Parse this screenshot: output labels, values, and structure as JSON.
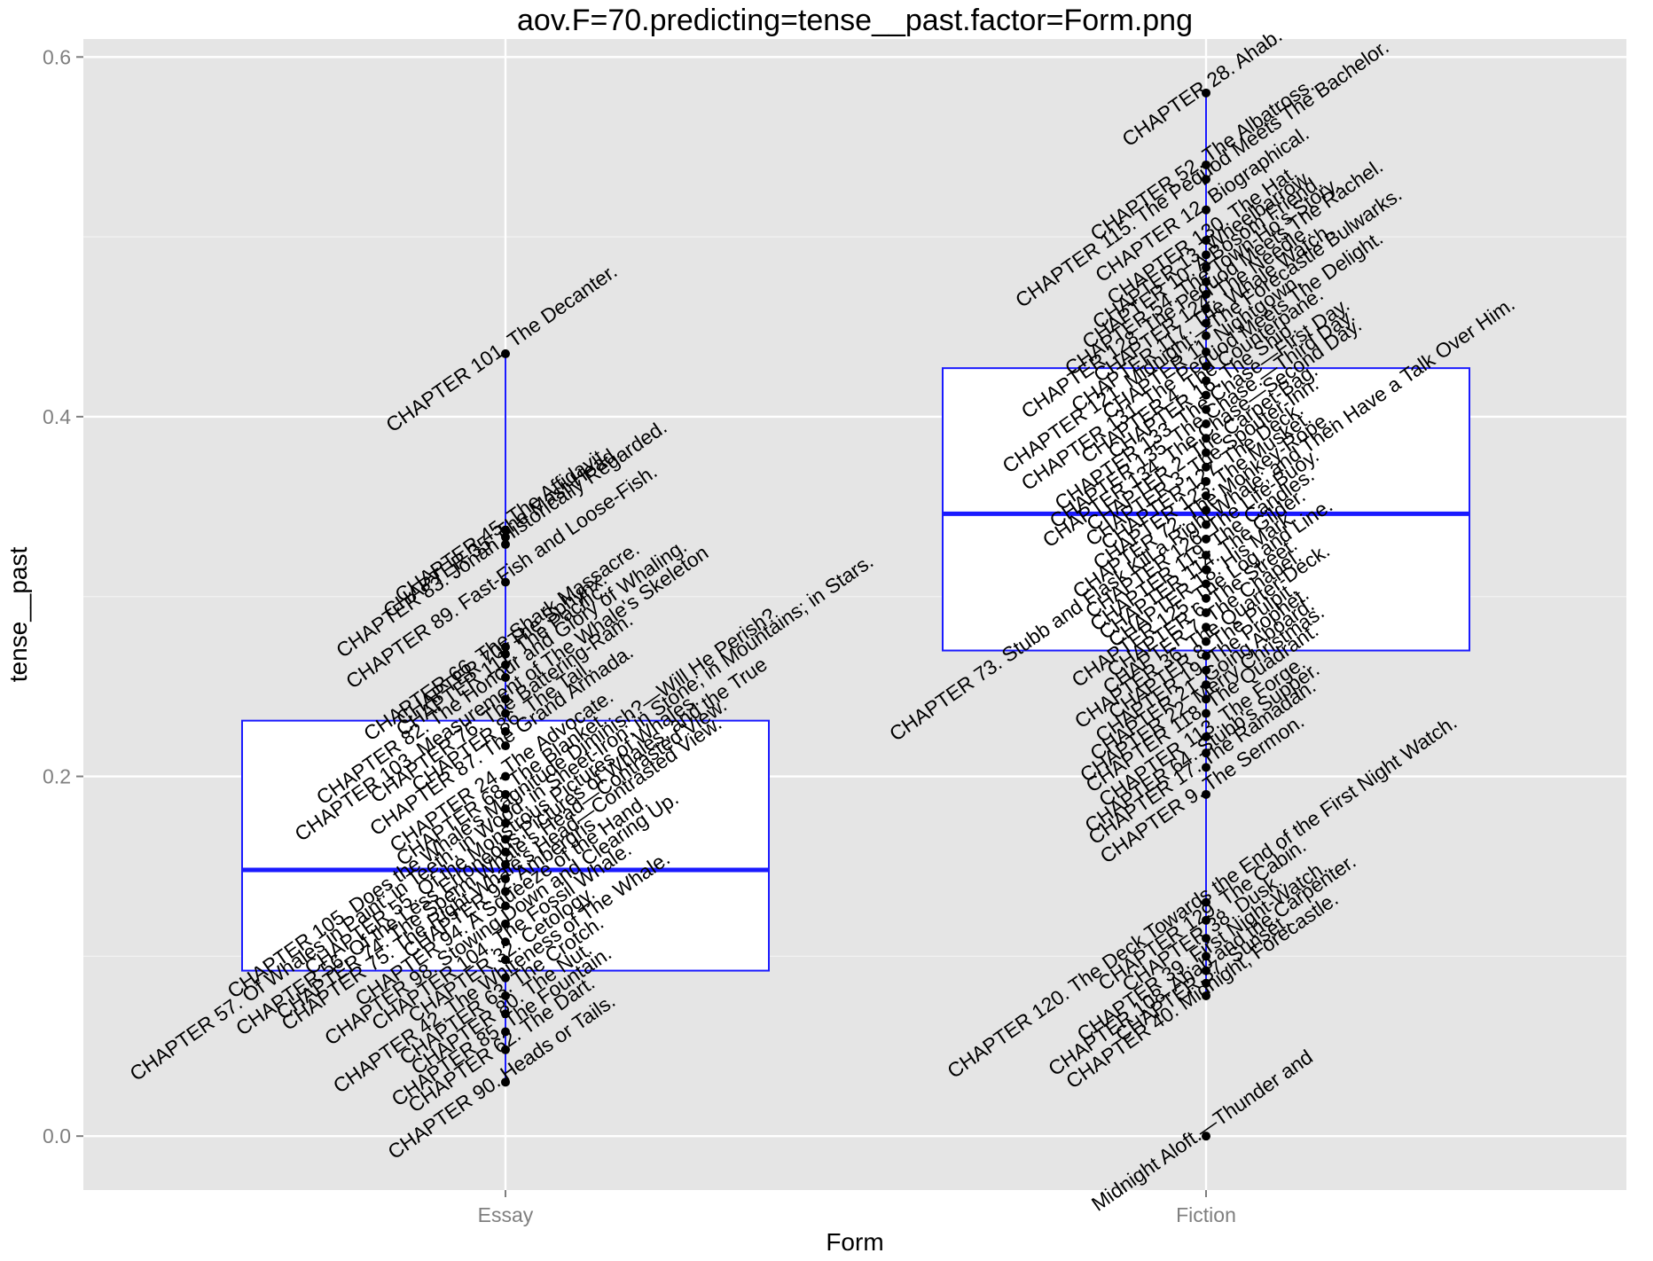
{
  "chart_data": {
    "type": "box",
    "title": "aov.F=70.predicting=tense__past.factor=Form.png",
    "xlabel": "Form",
    "ylabel": "tense__past",
    "categories": [
      "Essay",
      "Fiction"
    ],
    "ylim": [
      -0.03,
      0.61
    ],
    "yticks": [
      0.0,
      0.2,
      0.4,
      0.6
    ],
    "yticklabels": [
      "0.0",
      "0.2",
      "0.4",
      "0.6"
    ],
    "grid": true,
    "box_color": "#1a1aff",
    "panel_background": "#e5e5e5",
    "boxes": [
      {
        "category": "Essay",
        "whisker_low": 0.03,
        "q1": 0.092,
        "median": 0.148,
        "q3": 0.231,
        "whisker_high": 0.435
      },
      {
        "category": "Fiction",
        "whisker_low": 0.078,
        "q1": 0.27,
        "median": 0.346,
        "q3": 0.427,
        "whisker_high": 0.58
      }
    ],
    "points": [
      {
        "category": "Essay",
        "y": 0.435,
        "label": "CHAPTER 101. The Decanter."
      },
      {
        "category": "Essay",
        "y": 0.337,
        "label": "CHAPTER 45. The Affidavit."
      },
      {
        "category": "Essay",
        "y": 0.333,
        "label": "CHAPTER 35. The Mast-Head."
      },
      {
        "category": "Essay",
        "y": 0.329,
        "label": "CHAPTER 83. Jonah Historically Regarded."
      },
      {
        "category": "Essay",
        "y": 0.308,
        "label": "CHAPTER 89. Fast-Fish and Loose-Fish."
      },
      {
        "category": "Essay",
        "y": 0.272,
        "label": "CHAPTER 66. The Shark Massacre."
      },
      {
        "category": "Essay",
        "y": 0.268,
        "label": "CHAPTER 70. The Sphynx."
      },
      {
        "category": "Essay",
        "y": 0.262,
        "label": "CHAPTER 111. The Pacific."
      },
      {
        "category": "Essay",
        "y": 0.255,
        "label": "CHAPTER 82. The Honour and Glory of Whaling."
      },
      {
        "category": "Essay",
        "y": 0.243,
        "label": "CHAPTER 103. Measurement of The Whale's Skeleton"
      },
      {
        "category": "Essay",
        "y": 0.235,
        "label": "CHAPTER 76. The Battering-Ram."
      },
      {
        "category": "Essay",
        "y": 0.225,
        "label": "CHAPTER 86. The Tail."
      },
      {
        "category": "Essay",
        "y": 0.217,
        "label": "CHAPTER 87. The Grand Armada."
      },
      {
        "category": "Essay",
        "y": 0.2,
        "label": "CHAPTER 24. The Advocate."
      },
      {
        "category": "Essay",
        "y": 0.19,
        "label": "CHAPTER 68. The Blanket."
      },
      {
        "category": "Essay",
        "y": 0.182,
        "label": "CHAPTER 105. Does the Whale's Magnitude Diminish?—Will He Perish?"
      },
      {
        "category": "Essay",
        "y": 0.174,
        "label": "CHAPTER 57. Of Whales in Paint; in Teeth; in Wood; in Sheet-Iron; in Stone; in Mountains; in Stars."
      },
      {
        "category": "Essay",
        "y": 0.165,
        "label": "CHAPTER 55. Of the Monstrous Pictures of Whales."
      },
      {
        "category": "Essay",
        "y": 0.158,
        "label": "CHAPTER 56. Of the Less Erroneous Pictures of Whales, and the True"
      },
      {
        "category": "Essay",
        "y": 0.151,
        "label": "CHAPTER 74. The Sperm Whale's Head—Contrasted View."
      },
      {
        "category": "Essay",
        "y": 0.143,
        "label": "CHAPTER 75. The Right Whale's Head—Contrasted View."
      },
      {
        "category": "Essay",
        "y": 0.136,
        "label": "CHAPTER 92. Ambergris."
      },
      {
        "category": "Essay",
        "y": 0.128,
        "label": "CHAPTER 94. A Squeeze of the Hand."
      },
      {
        "category": "Essay",
        "y": 0.118,
        "label": "CHAPTER 98. Stowing Down and Clearing Up."
      },
      {
        "category": "Essay",
        "y": 0.108,
        "label": "CHAPTER 104. The Fossil Whale."
      },
      {
        "category": "Essay",
        "y": 0.098,
        "label": "CHAPTER 32. Cetology."
      },
      {
        "category": "Essay",
        "y": 0.088,
        "label": "CHAPTER 42. The Whiteness of The Whale."
      },
      {
        "category": "Essay",
        "y": 0.078,
        "label": "CHAPTER 63. The Crotch."
      },
      {
        "category": "Essay",
        "y": 0.068,
        "label": "CHAPTER 80. The Nut."
      },
      {
        "category": "Essay",
        "y": 0.058,
        "label": "CHAPTER 85. The Fountain."
      },
      {
        "category": "Essay",
        "y": 0.048,
        "label": "CHAPTER 62. The Dart."
      },
      {
        "category": "Essay",
        "y": 0.03,
        "label": "CHAPTER 90. Heads or Tails."
      },
      {
        "category": "Fiction",
        "y": 0.58,
        "label": "CHAPTER 28. Ahab."
      },
      {
        "category": "Fiction",
        "y": 0.54,
        "label": "CHAPTER 52. The Albatross."
      },
      {
        "category": "Fiction",
        "y": 0.532,
        "label": "CHAPTER 115. The Pequod Meets The Bachelor."
      },
      {
        "category": "Fiction",
        "y": 0.515,
        "label": "CHAPTER 12. Biographical."
      },
      {
        "category": "Fiction",
        "y": 0.498,
        "label": "CHAPTER 130. The Hat."
      },
      {
        "category": "Fiction",
        "y": 0.49,
        "label": "CHAPTER 13. Wheelbarrow."
      },
      {
        "category": "Fiction",
        "y": 0.483,
        "label": "CHAPTER 10. A Bosom Friend."
      },
      {
        "category": "Fiction",
        "y": 0.475,
        "label": "CHAPTER 54. The Town-Ho's Story."
      },
      {
        "category": "Fiction",
        "y": 0.468,
        "label": "CHAPTER 128. The Pequod Meets The Rachel."
      },
      {
        "category": "Fiction",
        "y": 0.46,
        "label": "CHAPTER 124. The Needle."
      },
      {
        "category": "Fiction",
        "y": 0.452,
        "label": "CHAPTER 117. The Whale Watch."
      },
      {
        "category": "Fiction",
        "y": 0.445,
        "label": "CHAPTER 121. Midnight.—The Forecastle Bulwarks."
      },
      {
        "category": "Fiction",
        "y": 0.436,
        "label": "CHAPTER 11. Nightgown."
      },
      {
        "category": "Fiction",
        "y": 0.428,
        "label": "CHAPTER 131. The Pequod Meets The Delight."
      },
      {
        "category": "Fiction",
        "y": 0.42,
        "label": "CHAPTER 4. The Counterpane."
      },
      {
        "category": "Fiction",
        "y": 0.412,
        "label": "CHAPTER 16. The Ship."
      },
      {
        "category": "Fiction",
        "y": 0.404,
        "label": "CHAPTER 133. The Chase—First Day."
      },
      {
        "category": "Fiction",
        "y": 0.396,
        "label": "CHAPTER 135. The Chase.—Third Day."
      },
      {
        "category": "Fiction",
        "y": 0.388,
        "label": "CHAPTER 134. The Chase—Second Day."
      },
      {
        "category": "Fiction",
        "y": 0.38,
        "label": "CHAPTER 2. The Carpet-Bag."
      },
      {
        "category": "Fiction",
        "y": 0.372,
        "label": "CHAPTER 3. The Spouter-Inn."
      },
      {
        "category": "Fiction",
        "y": 0.364,
        "label": "CHAPTER 127. The Deck."
      },
      {
        "category": "Fiction",
        "y": 0.356,
        "label": "CHAPTER 123. The Musket."
      },
      {
        "category": "Fiction",
        "y": 0.348,
        "label": "CHAPTER 72. The Monkey-Rope."
      },
      {
        "category": "Fiction",
        "y": 0.34,
        "label": "CHAPTER 73. Stubb and Flask Kill a Right Whale; and Then Have a Talk Over Him."
      },
      {
        "category": "Fiction",
        "y": 0.332,
        "label": "CHAPTER 126. The Life-Buoy."
      },
      {
        "category": "Fiction",
        "y": 0.323,
        "label": "CHAPTER 119. The Candles."
      },
      {
        "category": "Fiction",
        "y": 0.315,
        "label": "CHAPTER 114. The Gilder."
      },
      {
        "category": "Fiction",
        "y": 0.307,
        "label": "CHAPTER 18. His Mark."
      },
      {
        "category": "Fiction",
        "y": 0.299,
        "label": "CHAPTER 125. The Log and Line."
      },
      {
        "category": "Fiction",
        "y": 0.291,
        "label": "CHAPTER 6. The Street."
      },
      {
        "category": "Fiction",
        "y": 0.283,
        "label": "CHAPTER 7. The Chapel."
      },
      {
        "category": "Fiction",
        "y": 0.275,
        "label": "CHAPTER 36. The Quarter-Deck."
      },
      {
        "category": "Fiction",
        "y": 0.267,
        "label": "CHAPTER 8. The Pulpit."
      },
      {
        "category": "Fiction",
        "y": 0.259,
        "label": "CHAPTER 19. The Prophet."
      },
      {
        "category": "Fiction",
        "y": 0.251,
        "label": "CHAPTER 21. Going Aboard."
      },
      {
        "category": "Fiction",
        "y": 0.243,
        "label": "CHAPTER 22. Merry Christmas."
      },
      {
        "category": "Fiction",
        "y": 0.235,
        "label": "CHAPTER 118. The Quadrant."
      },
      {
        "category": "Fiction",
        "y": 0.222,
        "label": "CHAPTER 113. The Forge."
      },
      {
        "category": "Fiction",
        "y": 0.213,
        "label": "CHAPTER 64. Stubb's Supper."
      },
      {
        "category": "Fiction",
        "y": 0.205,
        "label": "CHAPTER 17. The Ramadan."
      },
      {
        "category": "Fiction",
        "y": 0.19,
        "label": "CHAPTER 9. The Sermon."
      },
      {
        "category": "Fiction",
        "y": 0.13,
        "label": "CHAPTER 120. The Deck Towards the End of the First Night Watch."
      },
      {
        "category": "Fiction",
        "y": 0.12,
        "label": "CHAPTER 129. The Cabin."
      },
      {
        "category": "Fiction",
        "y": 0.11,
        "label": "CHAPTER 38. Dusk."
      },
      {
        "category": "Fiction",
        "y": 0.1,
        "label": "CHAPTER 39. First Night-Watch."
      },
      {
        "category": "Fiction",
        "y": 0.092,
        "label": "CHAPTER 108. Ahab and the Carpenter."
      },
      {
        "category": "Fiction",
        "y": 0.085,
        "label": "CHAPTER 37. Sunset."
      },
      {
        "category": "Fiction",
        "y": 0.078,
        "label": "CHAPTER 40. Midnight, Forecastle."
      },
      {
        "category": "Fiction",
        "y": 0.0,
        "label": "Midnight Aloft.—Thunder and"
      }
    ]
  }
}
